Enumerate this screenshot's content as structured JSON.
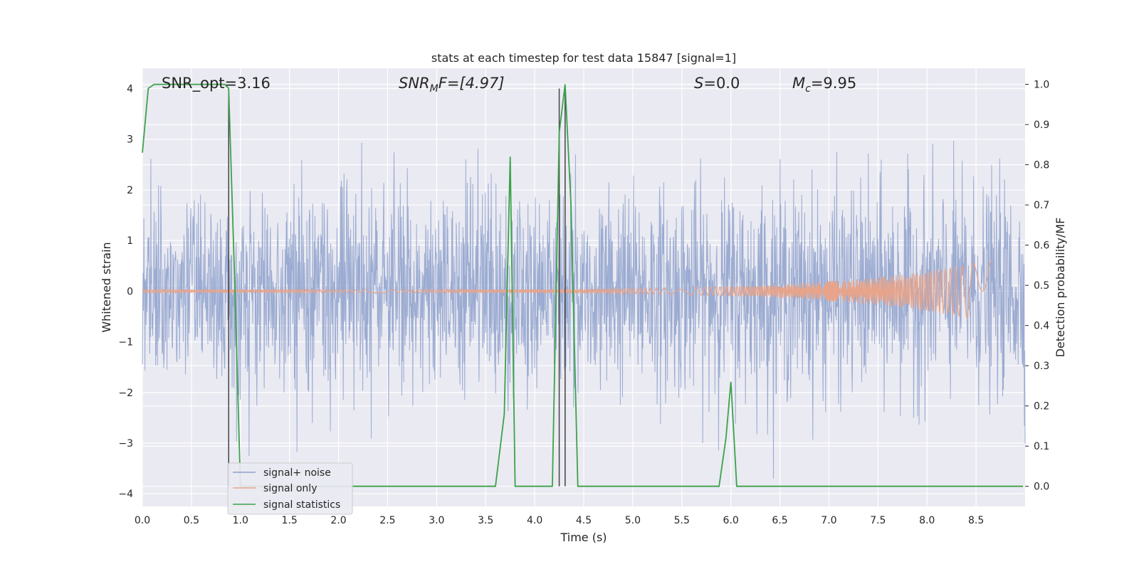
{
  "chart_data": {
    "type": "line",
    "title": "stats at each timestep for test data 15847 [signal=1]",
    "xlabel": "Time (s)",
    "ylabel": "Whitened strain",
    "y2label": "Detection probability/MF",
    "xlim": [
      0.0,
      9.0
    ],
    "ylim": [
      -4.25,
      4.4
    ],
    "y2lim": [
      -0.05,
      1.04
    ],
    "xticks": [
      "0.0",
      "0.5",
      "1.0",
      "1.5",
      "2.0",
      "2.5",
      "3.0",
      "3.5",
      "4.0",
      "4.5",
      "5.0",
      "5.5",
      "6.0",
      "6.5",
      "7.0",
      "7.5",
      "8.0",
      "8.5"
    ],
    "yticks": [
      "4",
      "3",
      "2",
      "1",
      "0",
      "−1",
      "−2",
      "−3",
      "−4"
    ],
    "y2ticks": [
      "1.0",
      "0.9",
      "0.8",
      "0.7",
      "0.6",
      "0.5",
      "0.4",
      "0.3",
      "0.2",
      "0.1",
      "0.0"
    ],
    "grid": true,
    "legend_position": "lower-left",
    "annotations": {
      "snr_opt": "SNR_opt=3.16",
      "snr_mf": "SNR",
      "snr_mf_sub": "M",
      "snr_mf_rest": "F=[4.97]",
      "s_var": "S",
      "s_rest": "=0.0",
      "mc_var": "M",
      "mc_sub": "c",
      "mc_rest": "=9.95"
    },
    "colors": {
      "noise": "#8da0cb",
      "signal": "#e8a48a",
      "stats": "#3ca24a",
      "vlines": "#444444",
      "background": "#eaeaf2"
    },
    "vertical_lines_x": [
      0.88,
      4.25,
      4.31
    ],
    "series": [
      {
        "name": "signal+ noise",
        "axis": "left",
        "duration": 9.0,
        "samples": 2400,
        "amplitude_sigma": 1.0,
        "seed": 15847
      },
      {
        "name": "signal only",
        "axis": "left",
        "start": 0.0,
        "end": 8.66,
        "amplitude_end": 0.62,
        "amplitude_start": 0.03
      },
      {
        "name": "signal statistics",
        "axis": "right",
        "x": [
          0.0,
          0.06,
          0.12,
          0.18,
          0.24,
          0.3,
          0.36,
          0.42,
          0.48,
          0.54,
          0.6,
          0.66,
          0.72,
          0.78,
          0.84,
          0.88,
          0.94,
          1.0,
          3.6,
          3.69,
          3.75,
          3.8,
          3.9,
          4.0,
          4.1,
          4.18,
          4.25,
          4.31,
          4.37,
          4.44,
          5.5,
          5.88,
          5.95,
          6.0,
          6.06,
          6.12,
          8.98
        ],
        "y": [
          0.83,
          0.99,
          1.0,
          1.0,
          1.0,
          1.0,
          1.0,
          1.0,
          1.0,
          1.0,
          1.0,
          1.0,
          1.0,
          1.0,
          1.0,
          0.99,
          0.52,
          0.0,
          0.0,
          0.18,
          0.82,
          0.0,
          0.0,
          0.0,
          0.0,
          0.0,
          0.88,
          1.0,
          0.7,
          0.0,
          0.0,
          0.0,
          0.12,
          0.26,
          0.0,
          0.0,
          0.0
        ]
      }
    ]
  }
}
